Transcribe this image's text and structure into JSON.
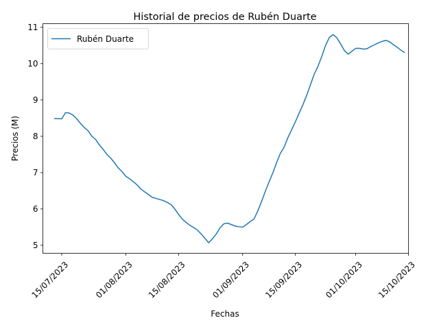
{
  "chart_data": {
    "type": "line",
    "title": "Historial de precios de Rubén Duarte",
    "xlabel": "Fechas",
    "ylabel": "Precios (M)",
    "ylim": [
      4.78,
      11.1
    ],
    "xlim": [
      "2023-07-10",
      "2023-10-15"
    ],
    "x_ticks": [
      "2023-07-15",
      "2023-08-01",
      "2023-08-15",
      "2023-09-01",
      "2023-09-15",
      "2023-10-01",
      "2023-10-15"
    ],
    "x_tick_labels": [
      "15/07/2023",
      "01/08/2023",
      "15/08/2023",
      "01/09/2023",
      "15/09/2023",
      "01/10/2023",
      "15/10/2023"
    ],
    "y_ticks": [
      5,
      6,
      7,
      8,
      9,
      10,
      11
    ],
    "y_tick_labels": [
      "5",
      "6",
      "7",
      "8",
      "9",
      "10",
      "11"
    ],
    "grid": false,
    "legend": {
      "position": "upper-left",
      "entries": [
        "Rubén Duarte"
      ]
    },
    "series": [
      {
        "name": "Rubén Duarte",
        "color": "#1f77b4",
        "points": [
          [
            "2023-07-13",
            8.49
          ],
          [
            "2023-07-15",
            8.48
          ],
          [
            "2023-07-16",
            8.65
          ],
          [
            "2023-07-17",
            8.64
          ],
          [
            "2023-07-18",
            8.58
          ],
          [
            "2023-07-19",
            8.48
          ],
          [
            "2023-07-20",
            8.35
          ],
          [
            "2023-07-21",
            8.24
          ],
          [
            "2023-07-22",
            8.15
          ],
          [
            "2023-07-23",
            8.0
          ],
          [
            "2023-07-24",
            7.91
          ],
          [
            "2023-07-25",
            7.76
          ],
          [
            "2023-07-26",
            7.64
          ],
          [
            "2023-07-27",
            7.5
          ],
          [
            "2023-07-28",
            7.4
          ],
          [
            "2023-07-29",
            7.27
          ],
          [
            "2023-07-30",
            7.13
          ],
          [
            "2023-07-31",
            7.03
          ],
          [
            "2023-08-01",
            6.9
          ],
          [
            "2023-08-02",
            6.83
          ],
          [
            "2023-08-03",
            6.75
          ],
          [
            "2023-08-04",
            6.66
          ],
          [
            "2023-08-05",
            6.55
          ],
          [
            "2023-08-06",
            6.47
          ],
          [
            "2023-08-07",
            6.4
          ],
          [
            "2023-08-08",
            6.32
          ],
          [
            "2023-08-09",
            6.29
          ],
          [
            "2023-08-10",
            6.26
          ],
          [
            "2023-08-11",
            6.23
          ],
          [
            "2023-08-12",
            6.18
          ],
          [
            "2023-08-13",
            6.12
          ],
          [
            "2023-08-14",
            6.0
          ],
          [
            "2023-08-15",
            5.85
          ],
          [
            "2023-08-16",
            5.72
          ],
          [
            "2023-08-17",
            5.63
          ],
          [
            "2023-08-18",
            5.55
          ],
          [
            "2023-08-19",
            5.49
          ],
          [
            "2023-08-20",
            5.42
          ],
          [
            "2023-08-21",
            5.31
          ],
          [
            "2023-08-22",
            5.19
          ],
          [
            "2023-08-23",
            5.07
          ],
          [
            "2023-08-24",
            5.18
          ],
          [
            "2023-08-25",
            5.31
          ],
          [
            "2023-08-26",
            5.48
          ],
          [
            "2023-08-27",
            5.59
          ],
          [
            "2023-08-28",
            5.61
          ],
          [
            "2023-08-29",
            5.57
          ],
          [
            "2023-08-30",
            5.53
          ],
          [
            "2023-08-31",
            5.51
          ],
          [
            "2023-09-01",
            5.5
          ],
          [
            "2023-09-02",
            5.57
          ],
          [
            "2023-09-03",
            5.65
          ],
          [
            "2023-09-04",
            5.72
          ],
          [
            "2023-09-05",
            5.94
          ],
          [
            "2023-09-06",
            6.2
          ],
          [
            "2023-09-07",
            6.48
          ],
          [
            "2023-09-08",
            6.74
          ],
          [
            "2023-09-09",
            6.99
          ],
          [
            "2023-09-10",
            7.27
          ],
          [
            "2023-09-11",
            7.53
          ],
          [
            "2023-09-12",
            7.7
          ],
          [
            "2023-09-13",
            7.96
          ],
          [
            "2023-09-14",
            8.18
          ],
          [
            "2023-09-15",
            8.4
          ],
          [
            "2023-09-16",
            8.64
          ],
          [
            "2023-09-17",
            8.87
          ],
          [
            "2023-09-18",
            9.13
          ],
          [
            "2023-09-19",
            9.42
          ],
          [
            "2023-09-20",
            9.71
          ],
          [
            "2023-09-21",
            9.93
          ],
          [
            "2023-09-22",
            10.2
          ],
          [
            "2023-09-23",
            10.5
          ],
          [
            "2023-09-24",
            10.72
          ],
          [
            "2023-09-25",
            10.8
          ],
          [
            "2023-09-26",
            10.71
          ],
          [
            "2023-09-27",
            10.54
          ],
          [
            "2023-09-28",
            10.36
          ],
          [
            "2023-09-29",
            10.26
          ],
          [
            "2023-09-30",
            10.34
          ],
          [
            "2023-10-01",
            10.42
          ],
          [
            "2023-10-02",
            10.42
          ],
          [
            "2023-10-03",
            10.4
          ],
          [
            "2023-10-04",
            10.41
          ],
          [
            "2023-10-05",
            10.47
          ],
          [
            "2023-10-06",
            10.52
          ],
          [
            "2023-10-07",
            10.57
          ],
          [
            "2023-10-08",
            10.61
          ],
          [
            "2023-10-09",
            10.64
          ],
          [
            "2023-10-10",
            10.6
          ],
          [
            "2023-10-11",
            10.52
          ],
          [
            "2023-10-12",
            10.45
          ],
          [
            "2023-10-13",
            10.37
          ],
          [
            "2023-10-14",
            10.3
          ]
        ]
      }
    ]
  }
}
